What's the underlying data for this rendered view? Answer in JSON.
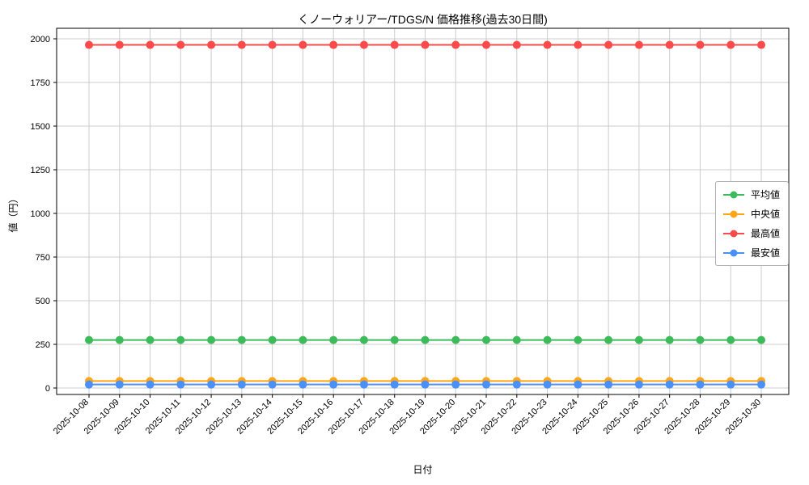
{
  "chart_data": {
    "type": "line",
    "title": "くノーウォリアー/TDGS/N 価格推移(過去30日間)",
    "xlabel": "日付",
    "ylabel": "値（円）",
    "ylim": [
      0,
      2000
    ],
    "yticks": [
      0,
      250,
      500,
      750,
      1000,
      1250,
      1500,
      1750,
      2000
    ],
    "grid": true,
    "legend_position": "center right",
    "xtick_rotation": 45,
    "categories": [
      "2025-10-08",
      "2025-10-09",
      "2025-10-10",
      "2025-10-11",
      "2025-10-12",
      "2025-10-13",
      "2025-10-14",
      "2025-10-15",
      "2025-10-16",
      "2025-10-17",
      "2025-10-18",
      "2025-10-19",
      "2025-10-20",
      "2025-10-21",
      "2025-10-22",
      "2025-10-23",
      "2025-10-24",
      "2025-10-25",
      "2025-10-26",
      "2025-10-27",
      "2025-10-28",
      "2025-10-29",
      "2025-10-30"
    ],
    "series": [
      {
        "name": "平均値",
        "key": "average",
        "color": "#3dbb5b",
        "values": [
          275,
          275,
          275,
          275,
          275,
          275,
          275,
          275,
          275,
          275,
          275,
          275,
          275,
          275,
          275,
          275,
          275,
          275,
          275,
          275,
          275,
          275,
          275
        ]
      },
      {
        "name": "中央値",
        "key": "median",
        "color": "#ffa516",
        "values": [
          40,
          40,
          40,
          40,
          40,
          40,
          40,
          40,
          40,
          40,
          40,
          40,
          40,
          40,
          40,
          40,
          40,
          40,
          40,
          40,
          40,
          40,
          40
        ]
      },
      {
        "name": "最高値",
        "key": "max",
        "color": "#fb4a4a",
        "values": [
          1965,
          1965,
          1965,
          1965,
          1965,
          1965,
          1965,
          1965,
          1965,
          1965,
          1965,
          1965,
          1965,
          1965,
          1965,
          1965,
          1965,
          1965,
          1965,
          1965,
          1965,
          1965,
          1965
        ]
      },
      {
        "name": "最安値",
        "key": "min",
        "color": "#4a90fb",
        "values": [
          20,
          20,
          20,
          20,
          20,
          20,
          20,
          20,
          20,
          20,
          20,
          20,
          20,
          20,
          20,
          20,
          20,
          20,
          20,
          20,
          20,
          20,
          20
        ]
      }
    ]
  }
}
